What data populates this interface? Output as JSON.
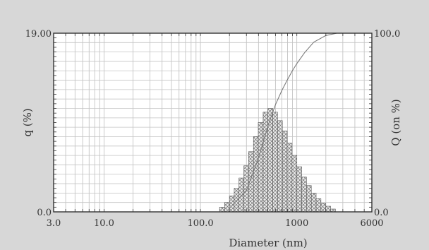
{
  "chart_data": {
    "type": "bar",
    "title": "",
    "xlabel": "Diameter (nm)",
    "ylabel": "q (%)",
    "y2label": "Q (on %)",
    "x_scale": "log",
    "xlim": [
      3.0,
      6000
    ],
    "ylim": [
      0.0,
      19.0
    ],
    "y2lim": [
      0.0,
      100.0
    ],
    "x_ticks": [
      {
        "value": 3.0,
        "label": "3.0"
      },
      {
        "value": 10.0,
        "label": "10.0"
      },
      {
        "value": 100.0,
        "label": "100.0"
      },
      {
        "value": 1000,
        "label": "1000"
      },
      {
        "value": 6000,
        "label": "6000"
      }
    ],
    "y_ticks": [
      {
        "value": 19.0,
        "label": "19.00"
      },
      {
        "value": 0.0,
        "label": "0.0"
      }
    ],
    "y2_ticks": [
      {
        "value": 100.0,
        "label": "100.0"
      },
      {
        "value": 0.0,
        "label": "0.0"
      }
    ],
    "grid": true,
    "series": [
      {
        "type": "bar",
        "axis": "left",
        "bins": [
          {
            "x0": 158,
            "x1": 178,
            "y": 0.5
          },
          {
            "x0": 178,
            "x1": 200,
            "y": 1.0
          },
          {
            "x0": 200,
            "x1": 224,
            "y": 1.7
          },
          {
            "x0": 224,
            "x1": 251,
            "y": 2.5
          },
          {
            "x0": 251,
            "x1": 282,
            "y": 3.6
          },
          {
            "x0": 282,
            "x1": 316,
            "y": 4.9
          },
          {
            "x0": 316,
            "x1": 355,
            "y": 6.4
          },
          {
            "x0": 355,
            "x1": 398,
            "y": 8.0
          },
          {
            "x0": 398,
            "x1": 447,
            "y": 9.5
          },
          {
            "x0": 447,
            "x1": 501,
            "y": 10.6
          },
          {
            "x0": 501,
            "x1": 562,
            "y": 11.0
          },
          {
            "x0": 562,
            "x1": 631,
            "y": 10.6
          },
          {
            "x0": 631,
            "x1": 708,
            "y": 9.7
          },
          {
            "x0": 708,
            "x1": 794,
            "y": 8.6
          },
          {
            "x0": 794,
            "x1": 891,
            "y": 7.3
          },
          {
            "x0": 891,
            "x1": 1000,
            "y": 6.0
          },
          {
            "x0": 1000,
            "x1": 1122,
            "y": 4.8
          },
          {
            "x0": 1122,
            "x1": 1259,
            "y": 3.7
          },
          {
            "x0": 1259,
            "x1": 1413,
            "y": 2.8
          },
          {
            "x0": 1413,
            "x1": 1585,
            "y": 2.0
          },
          {
            "x0": 1585,
            "x1": 1778,
            "y": 1.4
          },
          {
            "x0": 1778,
            "x1": 1995,
            "y": 0.9
          },
          {
            "x0": 1995,
            "x1": 2239,
            "y": 0.6
          },
          {
            "x0": 2239,
            "x1": 2512,
            "y": 0.3
          }
        ]
      },
      {
        "type": "line",
        "axis": "right",
        "x": [
          200,
          300,
          400,
          500,
          600,
          700,
          800,
          900,
          1000,
          1200,
          1500,
          2000,
          2600
        ],
        "y": [
          2,
          12,
          30,
          48,
          60,
          68,
          74,
          79,
          83,
          89,
          95,
          98.7,
          100
        ]
      }
    ]
  }
}
